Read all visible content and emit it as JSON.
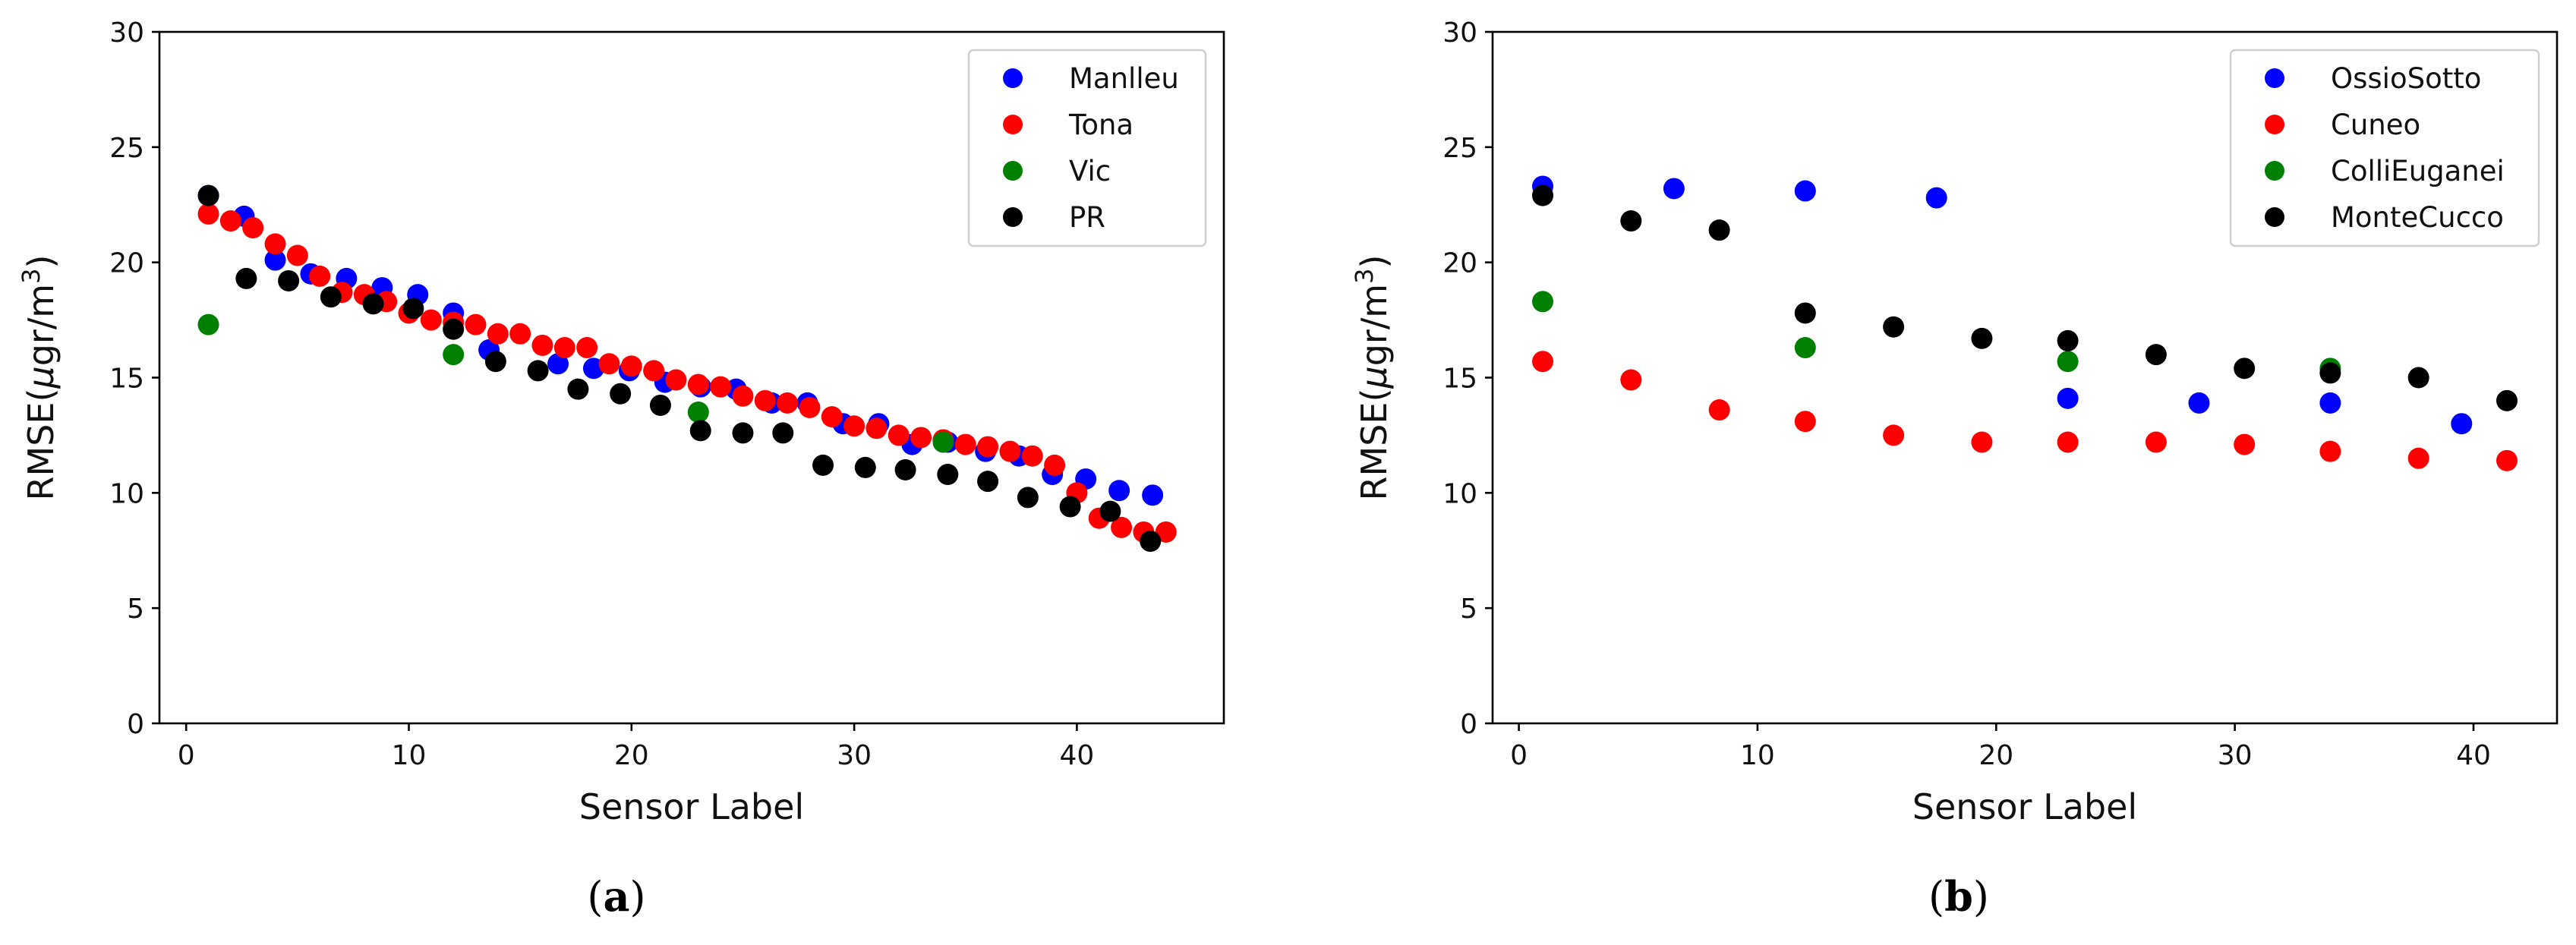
{
  "colors": {
    "blue": "#0000ff",
    "red": "#ff0000",
    "green": "#008000",
    "black": "#000000"
  },
  "chart_data": [
    {
      "type": "scatter",
      "id": "a",
      "caption_letter": "a",
      "xlabel": "Sensor Label",
      "ylabel_prefix": "RMSE(",
      "ylabel_mu": "μ",
      "ylabel_unit": "gr/m",
      "ylabel_exp": "3",
      "ylabel_suffix": ")",
      "xlim": [
        -1.2,
        46.6
      ],
      "ylim": [
        0,
        30
      ],
      "xticks": [
        0,
        10,
        20,
        30,
        40
      ],
      "yticks": [
        0,
        5,
        10,
        15,
        20,
        25,
        30
      ],
      "legend_position": "top-right",
      "series": [
        {
          "name": "Manlleu",
          "color": "#0000ff",
          "points": [
            [
              1,
              22.9
            ],
            [
              2.6,
              22.0
            ],
            [
              4,
              20.1
            ],
            [
              5.6,
              19.5
            ],
            [
              7.2,
              19.3
            ],
            [
              8.8,
              18.9
            ],
            [
              10.4,
              18.6
            ],
            [
              12,
              17.8
            ],
            [
              13.6,
              16.2
            ],
            [
              16.7,
              15.6
            ],
            [
              18.3,
              15.4
            ],
            [
              19.9,
              15.3
            ],
            [
              21.5,
              14.8
            ],
            [
              23.1,
              14.6
            ],
            [
              24.7,
              14.5
            ],
            [
              26.3,
              13.9
            ],
            [
              27.9,
              13.9
            ],
            [
              29.5,
              13.0
            ],
            [
              31.1,
              13.0
            ],
            [
              32.6,
              12.1
            ],
            [
              34.2,
              12.2
            ],
            [
              35.9,
              11.8
            ],
            [
              37.4,
              11.6
            ],
            [
              38.9,
              10.8
            ],
            [
              40.4,
              10.6
            ],
            [
              41.9,
              10.1
            ],
            [
              43.4,
              9.9
            ]
          ]
        },
        {
          "name": "Tona",
          "color": "#ff0000",
          "points": [
            [
              1,
              22.1
            ],
            [
              2,
              21.8
            ],
            [
              3,
              21.5
            ],
            [
              4,
              20.8
            ],
            [
              5,
              20.3
            ],
            [
              6,
              19.4
            ],
            [
              7,
              18.7
            ],
            [
              8,
              18.6
            ],
            [
              9,
              18.3
            ],
            [
              10,
              17.8
            ],
            [
              11,
              17.5
            ],
            [
              12,
              17.4
            ],
            [
              13,
              17.3
            ],
            [
              14,
              16.9
            ],
            [
              15,
              16.9
            ],
            [
              16,
              16.4
            ],
            [
              17,
              16.3
            ],
            [
              18,
              16.3
            ],
            [
              19,
              15.6
            ],
            [
              20,
              15.5
            ],
            [
              21,
              15.3
            ],
            [
              22,
              14.9
            ],
            [
              23,
              14.7
            ],
            [
              24,
              14.6
            ],
            [
              25,
              14.2
            ],
            [
              26,
              14.0
            ],
            [
              27,
              13.9
            ],
            [
              28,
              13.7
            ],
            [
              29,
              13.3
            ],
            [
              30,
              12.9
            ],
            [
              31,
              12.8
            ],
            [
              32,
              12.5
            ],
            [
              33,
              12.4
            ],
            [
              34,
              12.3
            ],
            [
              35,
              12.1
            ],
            [
              36,
              12.0
            ],
            [
              37,
              11.8
            ],
            [
              38,
              11.6
            ],
            [
              39,
              11.2
            ],
            [
              40,
              10.0
            ],
            [
              41,
              8.9
            ],
            [
              42,
              8.5
            ],
            [
              43,
              8.3
            ],
            [
              44,
              8.3
            ]
          ]
        },
        {
          "name": "Vic",
          "color": "#008000",
          "points": [
            [
              1,
              17.3
            ],
            [
              12,
              16.0
            ],
            [
              23,
              13.5
            ],
            [
              34,
              12.2
            ]
          ]
        },
        {
          "name": "PR",
          "color": "#000000",
          "points": [
            [
              1,
              22.9
            ],
            [
              2.7,
              19.3
            ],
            [
              4.6,
              19.2
            ],
            [
              6.5,
              18.5
            ],
            [
              8.4,
              18.2
            ],
            [
              10.2,
              18.0
            ],
            [
              12,
              17.1
            ],
            [
              13.9,
              15.7
            ],
            [
              15.8,
              15.3
            ],
            [
              17.6,
              14.5
            ],
            [
              19.5,
              14.3
            ],
            [
              21.3,
              13.8
            ],
            [
              23.1,
              12.7
            ],
            [
              25,
              12.6
            ],
            [
              26.8,
              12.6
            ],
            [
              28.6,
              11.2
            ],
            [
              30.5,
              11.1
            ],
            [
              32.3,
              11.0
            ],
            [
              34.2,
              10.8
            ],
            [
              36,
              10.5
            ],
            [
              37.8,
              9.8
            ],
            [
              39.7,
              9.4
            ],
            [
              41.5,
              9.2
            ],
            [
              43.3,
              7.9
            ]
          ]
        }
      ]
    },
    {
      "type": "scatter",
      "id": "b",
      "caption_letter": "b",
      "xlabel": "Sensor Label",
      "ylabel_prefix": "RMSE(",
      "ylabel_mu": "μ",
      "ylabel_unit": "gr/m",
      "ylabel_exp": "3",
      "ylabel_suffix": ")",
      "xlim": [
        -1.1,
        43.5
      ],
      "ylim": [
        0,
        30
      ],
      "xticks": [
        0,
        10,
        20,
        30,
        40
      ],
      "yticks": [
        0,
        5,
        10,
        15,
        20,
        25,
        30
      ],
      "legend_position": "top-right",
      "series": [
        {
          "name": "OssioSotto",
          "color": "#0000ff",
          "points": [
            [
              1,
              23.3
            ],
            [
              6.5,
              23.2
            ],
            [
              12,
              23.1
            ],
            [
              17.5,
              22.8
            ],
            [
              23,
              14.1
            ],
            [
              28.5,
              13.9
            ],
            [
              34,
              13.9
            ],
            [
              39.5,
              13.0
            ]
          ]
        },
        {
          "name": "Cuneo",
          "color": "#ff0000",
          "points": [
            [
              1,
              15.7
            ],
            [
              4.7,
              14.9
            ],
            [
              8.4,
              13.6
            ],
            [
              12,
              13.1
            ],
            [
              15.7,
              12.5
            ],
            [
              19.4,
              12.2
            ],
            [
              23,
              12.2
            ],
            [
              26.7,
              12.2
            ],
            [
              30.4,
              12.1
            ],
            [
              34,
              11.8
            ],
            [
              37.7,
              11.5
            ],
            [
              41.4,
              11.4
            ]
          ]
        },
        {
          "name": "ColliEuganei",
          "color": "#008000",
          "points": [
            [
              1,
              18.3
            ],
            [
              12,
              16.3
            ],
            [
              23,
              15.7
            ],
            [
              34,
              15.4
            ]
          ]
        },
        {
          "name": "MonteCucco",
          "color": "#000000",
          "points": [
            [
              1,
              22.9
            ],
            [
              4.7,
              21.8
            ],
            [
              8.4,
              21.4
            ],
            [
              12,
              17.8
            ],
            [
              15.7,
              17.2
            ],
            [
              19.4,
              16.7
            ],
            [
              23,
              16.6
            ],
            [
              26.7,
              16.0
            ],
            [
              30.4,
              15.4
            ],
            [
              34,
              15.2
            ],
            [
              37.7,
              15.0
            ],
            [
              41.4,
              14.0
            ]
          ]
        }
      ]
    }
  ]
}
